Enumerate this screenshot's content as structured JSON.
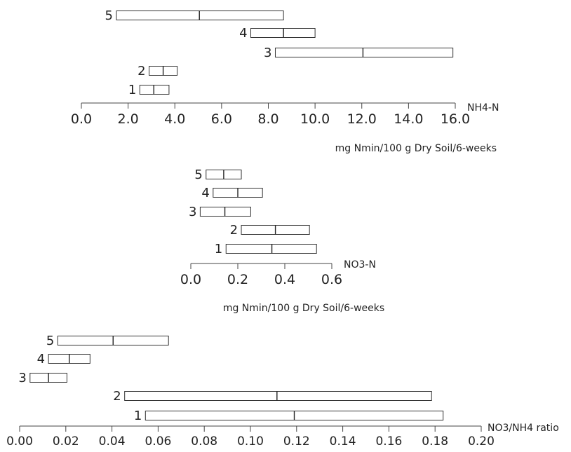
{
  "chart_data": [
    {
      "type": "box-range",
      "id": "nh4",
      "title": "",
      "axis_end_label": "NH4-N",
      "xlabel": "mg Nmin/100 g Dry Soil/6-weeks",
      "xlim": [
        0,
        16
      ],
      "ticks": [
        "0.0",
        "2.0",
        "4.0",
        "6.0",
        "8.0",
        "10.0",
        "12.0",
        "14.0",
        "16.0"
      ],
      "tick_values": [
        0,
        2,
        4,
        6,
        8,
        10,
        12,
        14,
        16
      ],
      "series": [
        {
          "name": "5",
          "low": 1.5,
          "mid": 5.05,
          "high": 8.65
        },
        {
          "name": "4",
          "low": 7.25,
          "mid": 8.65,
          "high": 10.0
        },
        {
          "name": "3",
          "low": 8.3,
          "mid": 12.05,
          "high": 15.9
        },
        {
          "name": "2",
          "low": 2.9,
          "mid": 3.5,
          "high": 4.1
        },
        {
          "name": "1",
          "low": 2.5,
          "mid": 3.1,
          "high": 3.75
        }
      ]
    },
    {
      "type": "box-range",
      "id": "no3",
      "title": "",
      "axis_end_label": "NO3-N",
      "xlabel": "mg Nmin/100 g Dry Soil/6-weeks",
      "xlim": [
        0,
        0.6
      ],
      "ticks": [
        "0.0",
        "0.2",
        "0.4",
        "0.6"
      ],
      "tick_values": [
        0,
        0.2,
        0.4,
        0.6
      ],
      "series": [
        {
          "name": "5",
          "low": 0.065,
          "mid": 0.14,
          "high": 0.215
        },
        {
          "name": "4",
          "low": 0.095,
          "mid": 0.2,
          "high": 0.305
        },
        {
          "name": "3",
          "low": 0.04,
          "mid": 0.145,
          "high": 0.255
        },
        {
          "name": "2",
          "low": 0.215,
          "mid": 0.36,
          "high": 0.505
        },
        {
          "name": "1",
          "low": 0.15,
          "mid": 0.345,
          "high": 0.535
        }
      ]
    },
    {
      "type": "box-range",
      "id": "ratio",
      "title": "",
      "axis_end_label": "NO3/NH4 ratio",
      "xlabel": "",
      "xlim": [
        0,
        0.2
      ],
      "ticks": [
        "0.00",
        "0.02",
        "0.04",
        "0.06",
        "0.08",
        "0.10",
        "0.12",
        "0.14",
        "0.16",
        "0.18",
        "0.20"
      ],
      "tick_values": [
        0,
        0.02,
        0.04,
        0.06,
        0.08,
        0.1,
        0.12,
        0.14,
        0.16,
        0.18,
        0.2
      ],
      "series": [
        {
          "name": "5",
          "low": 0.0165,
          "mid": 0.0405,
          "high": 0.0645
        },
        {
          "name": "4",
          "low": 0.0125,
          "mid": 0.0215,
          "high": 0.0305
        },
        {
          "name": "3",
          "low": 0.0045,
          "mid": 0.0125,
          "high": 0.0205
        },
        {
          "name": "2",
          "low": 0.0455,
          "mid": 0.1115,
          "high": 0.1785
        },
        {
          "name": "1",
          "low": 0.0545,
          "mid": 0.119,
          "high": 0.1835
        }
      ]
    }
  ]
}
